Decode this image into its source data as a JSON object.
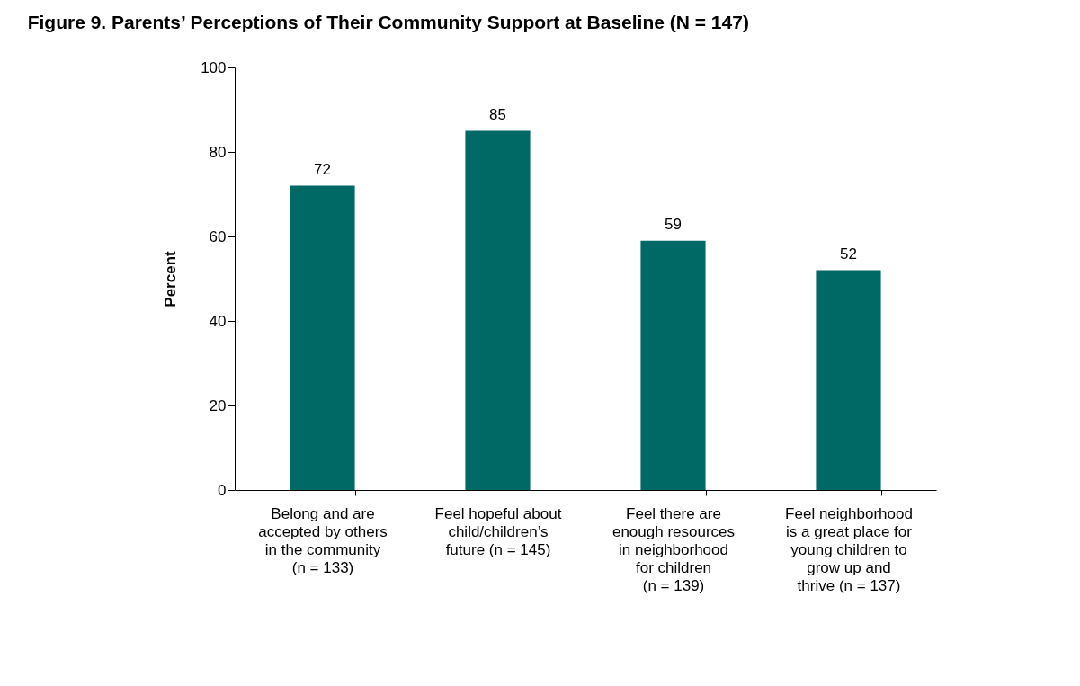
{
  "chart_data": {
    "type": "bar",
    "title": "Figure 9.   Parents’ Perceptions of Their Community Support at Baseline (N = 147)",
    "ylabel": "Percent",
    "categories": [
      "Belong and are\naccepted by others\nin the community\n(n = 133)",
      "Feel hopeful about\nchild/children’s\nfuture (n = 145)",
      "Feel there are\nenough resources\nin neighborhood\nfor children\n(n = 139)",
      "Feel neighborhood\nis a great place for\nyoung children to\ngrow up and\nthrive (n = 137)"
    ],
    "values": [
      72,
      85,
      59,
      52
    ],
    "color": "#006966",
    "ylim": [
      0,
      100
    ],
    "yticks": [
      0,
      20,
      40,
      60,
      80,
      100
    ],
    "grid": false,
    "data_labels": true
  }
}
